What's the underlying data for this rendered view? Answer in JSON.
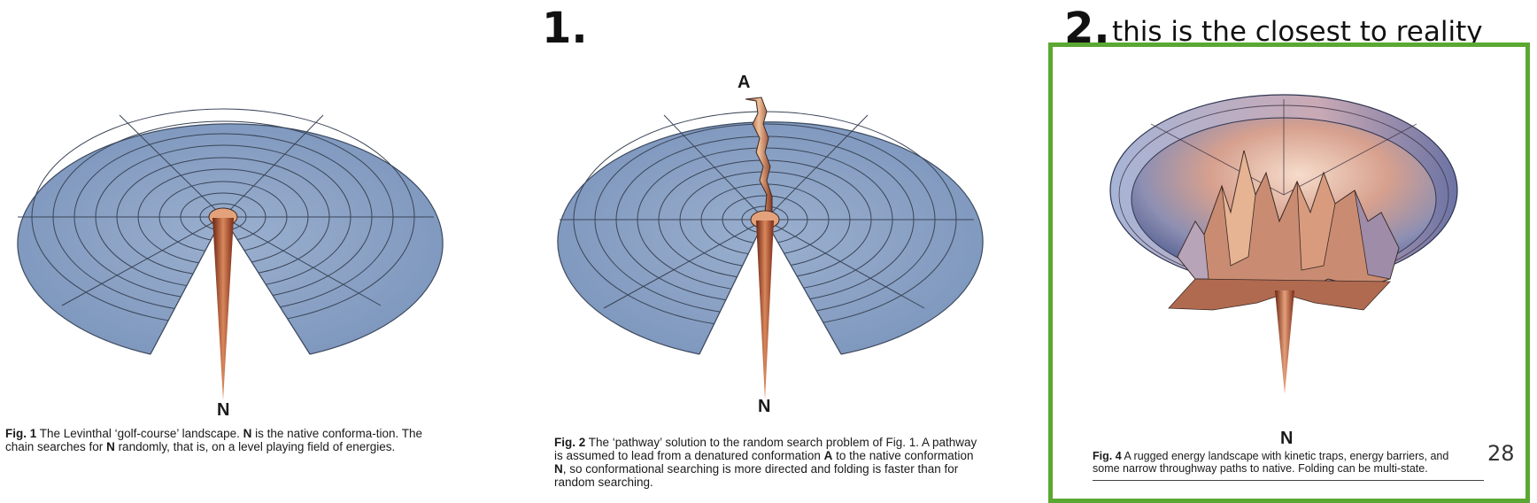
{
  "headers": {
    "label_1": "1.",
    "label_2": "2.",
    "note_2": "this is the closest to reality"
  },
  "figures": {
    "fig1": {
      "point_label": "N",
      "caption_bold": "Fig. 1",
      "caption_text": " The Levinthal ‘golf-course’ landscape. ",
      "caption_n": "N",
      "caption_text2": " is the native conforma-tion. The chain searches for ",
      "caption_n2": "N",
      "caption_text3": " randomly, that is, on a level playing field of energies."
    },
    "fig2": {
      "top_label": "A",
      "point_label": "N",
      "caption_bold": "Fig. 2",
      "caption_text": " The ‘pathway’ solution to the random search problem of Fig. 1. A pathway is assumed to lead from a denatured conformation ",
      "caption_a": "A",
      "caption_text2": " to the native conformation ",
      "caption_n": "N",
      "caption_text3": ", so conformational searching is more directed and folding is faster than for random searching."
    },
    "fig4": {
      "point_label": "N",
      "caption_bold": "Fig. 4",
      "caption_text": " A rugged energy landscape with kinetic traps, energy barriers, and some narrow throughway paths to native. Folding can be multi-state."
    }
  },
  "page_number": "28",
  "colors": {
    "highlight_box": "#5aa832",
    "surface": "#8aa1c4",
    "funnel": "#b3583a"
  }
}
